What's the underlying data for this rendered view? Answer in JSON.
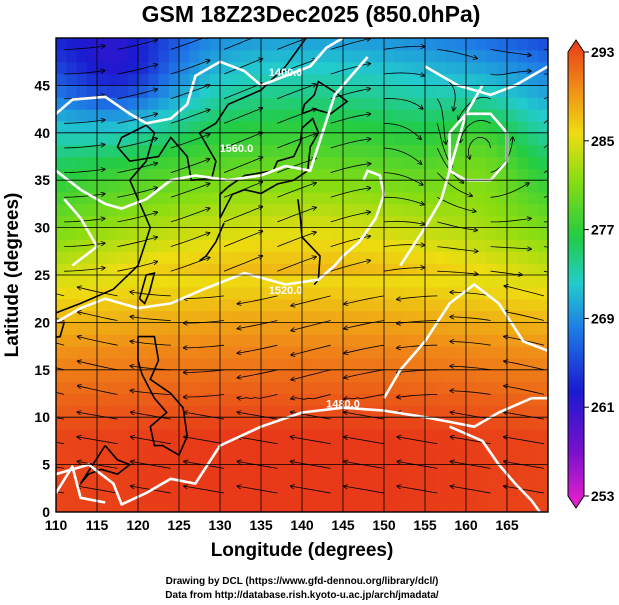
{
  "chart_data": {
    "type": "heatmap",
    "title": "GSM 18Z23Dec2025 (850.0hPa)",
    "xlabel": "Longitude (degrees)",
    "ylabel": "Latitude  (degrees)",
    "xlim": [
      110,
      170
    ],
    "ylim": [
      0,
      50
    ],
    "x_ticks": [
      "110",
      "115",
      "120",
      "125",
      "130",
      "135",
      "140",
      "145",
      "150",
      "155",
      "160",
      "165"
    ],
    "y_ticks": [
      "0",
      "5",
      "10",
      "15",
      "20",
      "25",
      "30",
      "35",
      "40",
      "45"
    ],
    "grid": true,
    "colorbar": {
      "ticks": [
        "253",
        "261",
        "269",
        "277",
        "285",
        "293"
      ],
      "range": [
        253,
        293
      ]
    },
    "contour_labels": [
      {
        "text": "1480.0",
        "lon": 145,
        "lat": 11
      },
      {
        "text": "1520.0",
        "lon": 138,
        "lat": 23
      },
      {
        "text": "1560.0",
        "lon": 132,
        "lat": 38
      },
      {
        "text": "1400.0",
        "lon": 138,
        "lat": 46
      }
    ]
  },
  "credits": {
    "line1": "Drawing by DCL (https://www.gfd-dennou.org/library/dcl/)",
    "line2": "Data from http://database.rish.kyoto-u.ac.jp/arch/jmadata/"
  },
  "colors": {
    "warm": "#e84a18",
    "cold": "#2a2ad8",
    "mid": "#44cc22"
  }
}
